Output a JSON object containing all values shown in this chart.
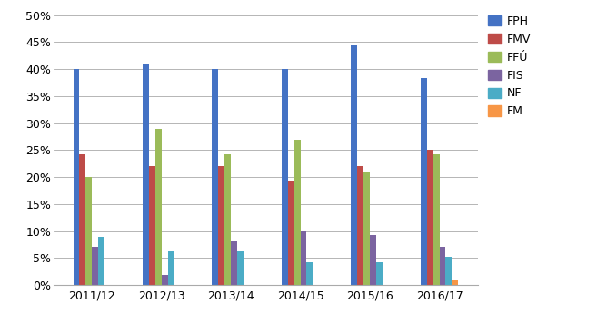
{
  "categories": [
    "2011/12",
    "2012/13",
    "2013/14",
    "2014/15",
    "2015/16",
    "2016/17"
  ],
  "series": {
    "FPH": [
      0.401,
      0.41,
      0.401,
      0.401,
      0.444,
      0.383
    ],
    "FMV": [
      0.242,
      0.221,
      0.221,
      0.193,
      0.221,
      0.25
    ],
    "FFÚ": [
      0.201,
      0.29,
      0.242,
      0.27,
      0.21,
      0.242
    ],
    "FIS": [
      0.071,
      0.019,
      0.082,
      0.1,
      0.092,
      0.071
    ],
    "NF": [
      0.09,
      0.062,
      0.062,
      0.042,
      0.042,
      0.052
    ],
    "FM": [
      0.0,
      0.0,
      0.0,
      0.0,
      0.0,
      0.01
    ]
  },
  "colors": {
    "FPH": "#4472C4",
    "FMV": "#BE4B48",
    "FFÚ": "#9BBB59",
    "FIS": "#7B64A0",
    "NF": "#4BACC6",
    "FM": "#F79646"
  },
  "ylim": [
    0,
    0.51
  ],
  "yticks": [
    0.0,
    0.05,
    0.1,
    0.15,
    0.2,
    0.25,
    0.3,
    0.35,
    0.4,
    0.45,
    0.5
  ],
  "background_color": "#FFFFFF",
  "grid_color": "#AAAAAA",
  "legend_order": [
    "FPH",
    "FMV",
    "FFÚ",
    "FIS",
    "NF",
    "FM"
  ],
  "bar_width": 0.09,
  "figsize": [
    6.57,
    3.57
  ],
  "dpi": 100
}
